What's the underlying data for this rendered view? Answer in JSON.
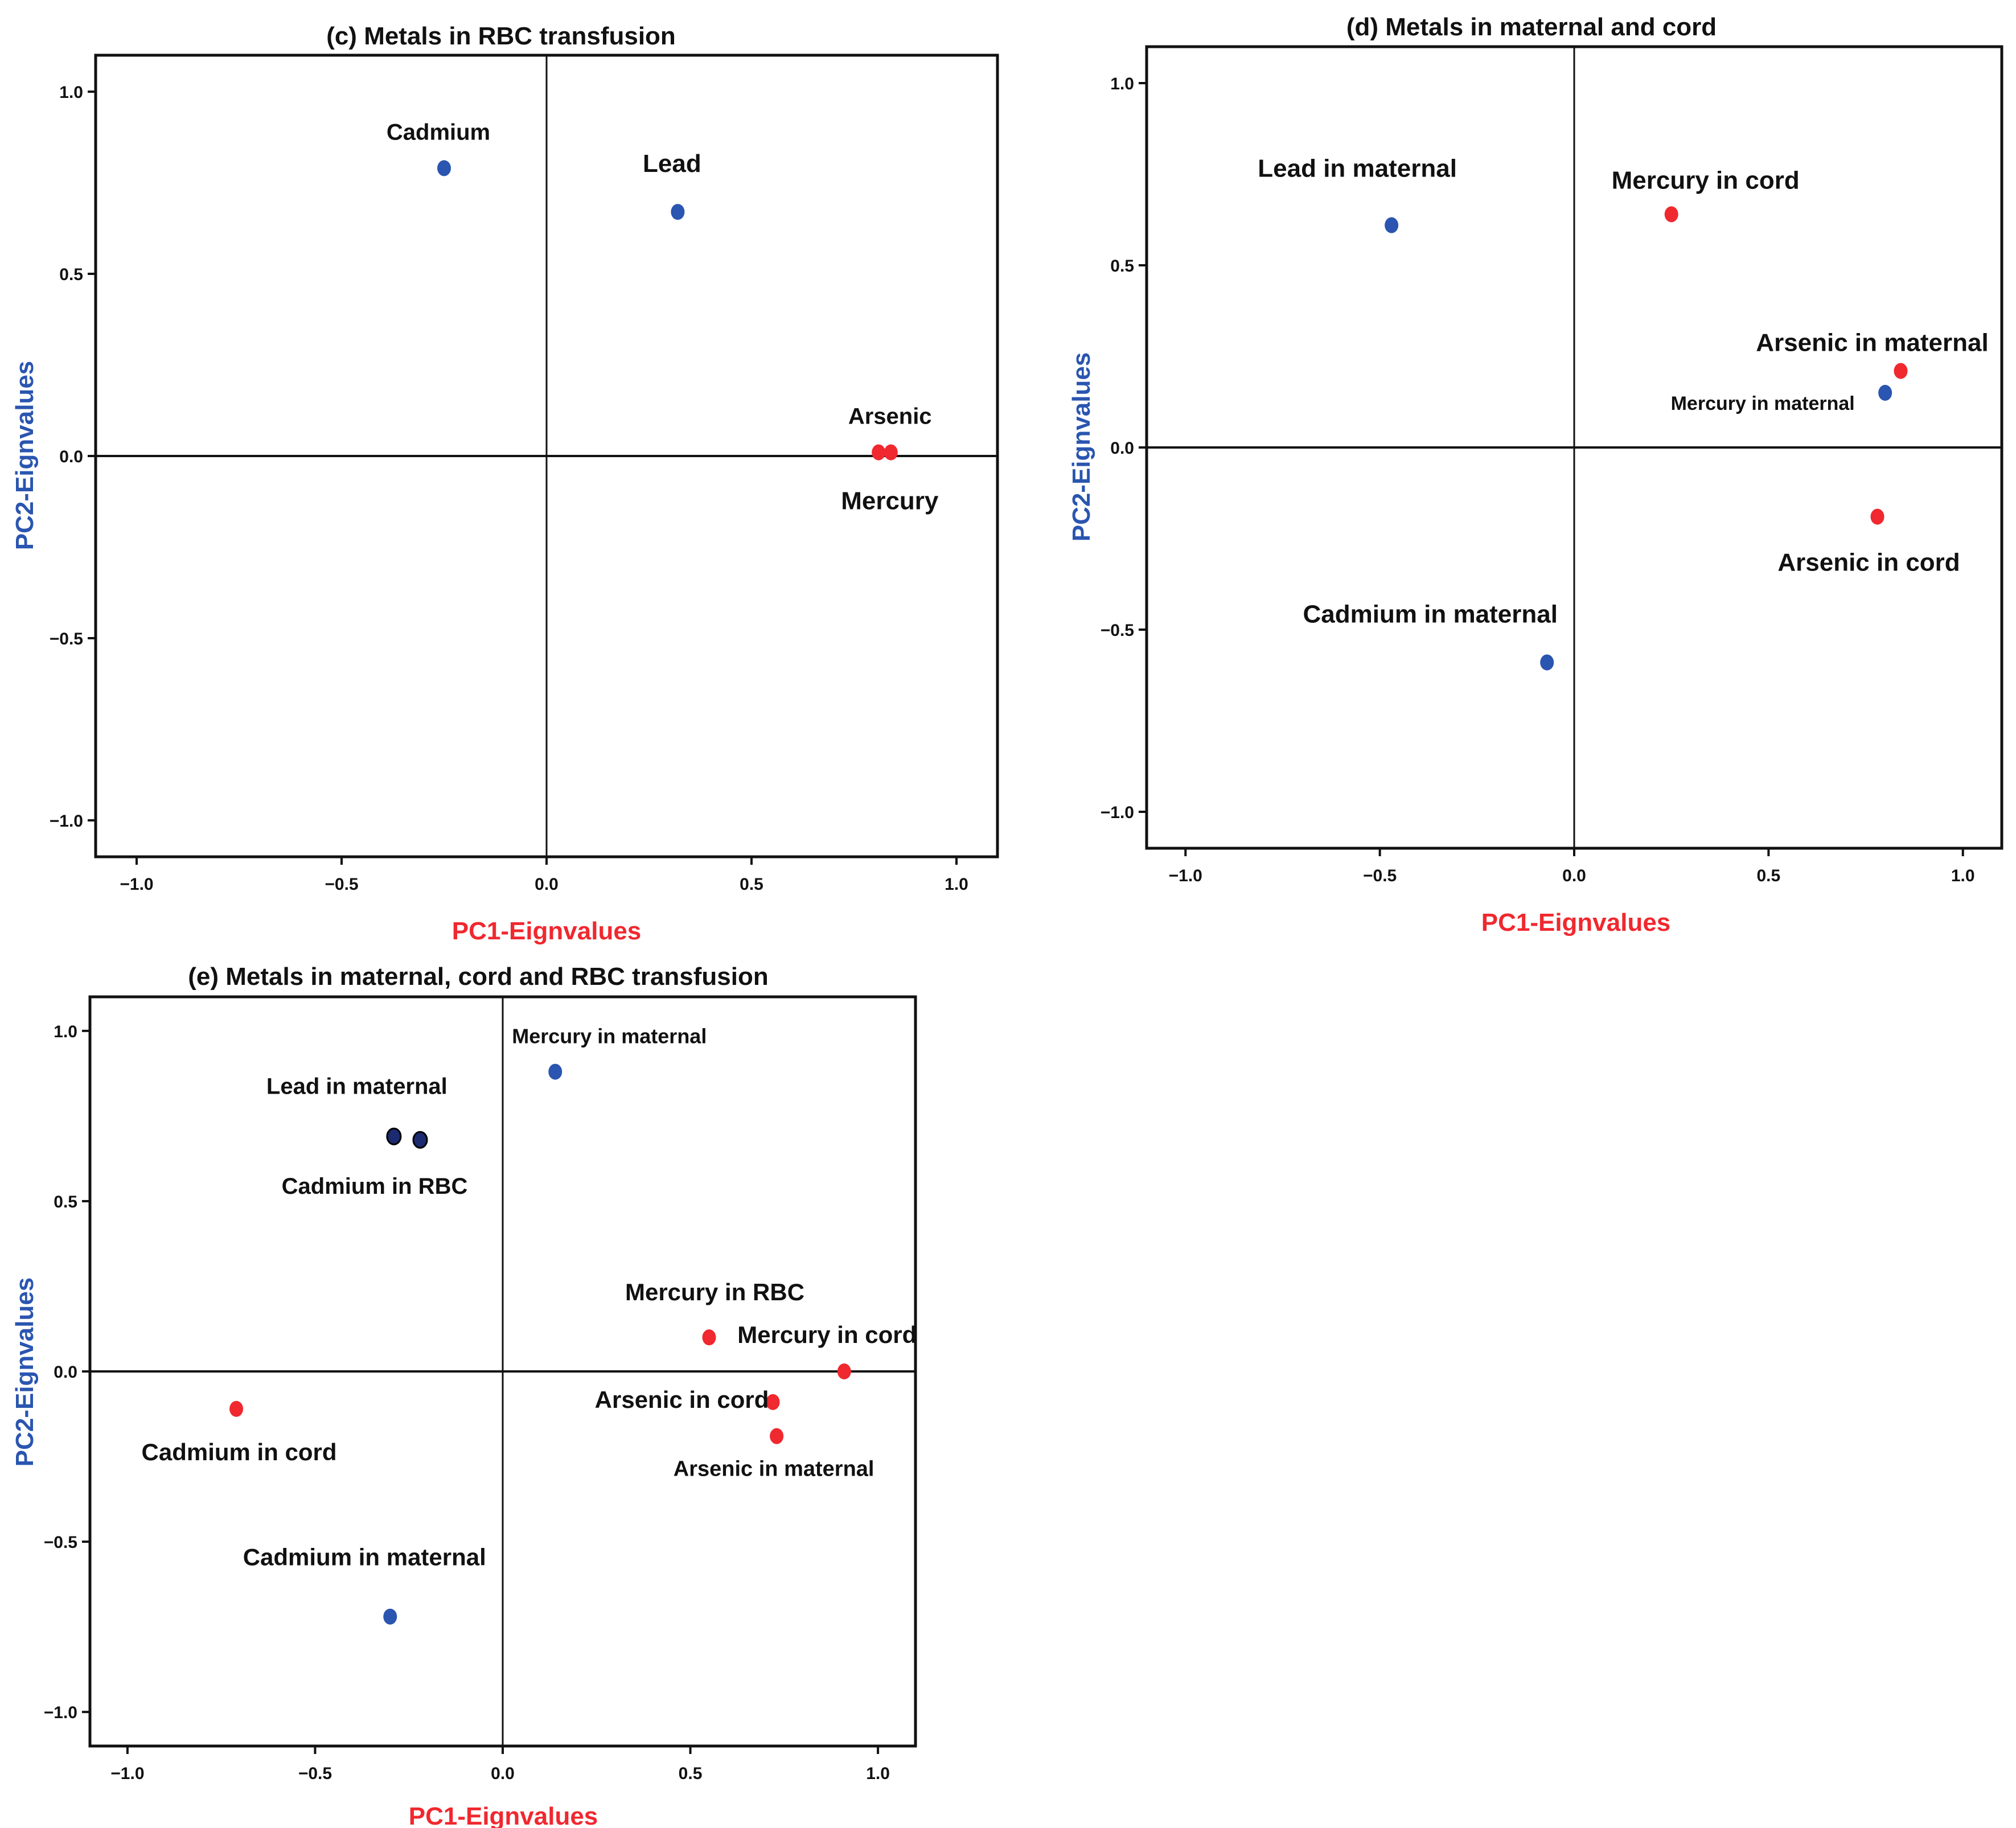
{
  "chart_data": [
    {
      "type": "scatter",
      "title": "(c) Metals in RBC transfusion",
      "xlabel": "PC1-Eignvalues",
      "ylabel": "PC2-Eignvalues",
      "xlim": [
        -1.1,
        1.1
      ],
      "ylim": [
        -1.1,
        1.1
      ],
      "xticks": [
        "−1.0",
        "−0.5",
        "0.0",
        "0.5",
        "1.0"
      ],
      "yticks": [
        "1.0",
        "0.5",
        "0.0",
        "−0.5",
        "−1.0"
      ],
      "points": [
        {
          "label": "Cadmium",
          "x": -0.25,
          "y": 0.79,
          "color": "#2a55b0"
        },
        {
          "label": "Lead",
          "x": 0.32,
          "y": 0.67,
          "color": "#2a55b0"
        },
        {
          "label": "Arsenic",
          "x": 0.81,
          "y": 0.01,
          "color": "#f0282f"
        },
        {
          "label": "Mercury",
          "x": 0.84,
          "y": 0.01,
          "color": "#f0282f"
        }
      ]
    },
    {
      "type": "scatter",
      "title": "(d) Metals in maternal and cord",
      "xlabel": "PC1-Eignvalues",
      "ylabel": "PC2-Eignvalues",
      "xlim": [
        -1.1,
        1.1
      ],
      "ylim": [
        -1.1,
        1.1
      ],
      "xticks": [
        "−1.0",
        "−0.5",
        "0.0",
        "0.5",
        "1.0"
      ],
      "yticks": [
        "1.0",
        "0.5",
        "0.0",
        "−0.5",
        "−1.0"
      ],
      "points": [
        {
          "label": "Lead in maternal",
          "x": -0.47,
          "y": 0.61,
          "color": "#2a55b0"
        },
        {
          "label": "Mercury in cord",
          "x": 0.25,
          "y": 0.64,
          "color": "#f0282f"
        },
        {
          "label": "Arsenic in maternal",
          "x": 0.84,
          "y": 0.21,
          "color": "#f0282f"
        },
        {
          "label": "Mercury in maternal",
          "x": 0.8,
          "y": 0.15,
          "color": "#2a55b0"
        },
        {
          "label": "Arsenic in cord",
          "x": 0.78,
          "y": -0.19,
          "color": "#f0282f"
        },
        {
          "label": "Cadmium in maternal",
          "x": -0.07,
          "y": -0.59,
          "color": "#2a55b0"
        }
      ]
    },
    {
      "type": "scatter",
      "title": "(e) Metals in maternal, cord and RBC transfusion",
      "xlabel": "PC1-Eignvalues",
      "ylabel": "PC2-Eignvalues",
      "xlim": [
        -1.1,
        1.1
      ],
      "ylim": [
        -1.1,
        1.1
      ],
      "xticks": [
        "−1.0",
        "−0.5",
        "0.0",
        "0.5",
        "1.0"
      ],
      "yticks": [
        "1.0",
        "0.5",
        "0.0",
        "−0.5",
        "−1.0"
      ],
      "points": [
        {
          "label": "Mercury in maternal",
          "x": 0.14,
          "y": 0.88,
          "color": "#2a55b0"
        },
        {
          "label": "Lead in maternal",
          "x": -0.29,
          "y": 0.69,
          "color": "#1c2a70"
        },
        {
          "label": "Cadmium in RBC",
          "x": -0.22,
          "y": 0.68,
          "color": "#1c2a70"
        },
        {
          "label": "Mercury in RBC",
          "x": 0.55,
          "y": 0.1,
          "color": "#f0282f"
        },
        {
          "label": "Mercury in cord",
          "x": 0.91,
          "y": 0.0,
          "color": "#f0282f"
        },
        {
          "label": "Arsenic in cord",
          "x": 0.72,
          "y": -0.09,
          "color": "#f0282f"
        },
        {
          "label": "Arsenic in maternal",
          "x": 0.73,
          "y": -0.19,
          "color": "#f0282f"
        },
        {
          "label": "Cadmium in cord",
          "x": -0.71,
          "y": -0.11,
          "color": "#f0282f"
        },
        {
          "label": "Cadmium in maternal",
          "x": -0.3,
          "y": -0.72,
          "color": "#2a55b0"
        }
      ]
    }
  ],
  "colors": {
    "xlabel": "#f0282f",
    "ylabel": "#2a55b0"
  }
}
